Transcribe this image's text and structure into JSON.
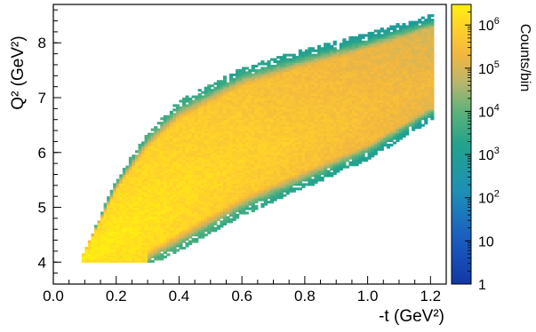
{
  "chart_data": {
    "type": "heatmap",
    "title": "",
    "xlabel": "-t (GeV²)",
    "ylabel": "Q² (GeV²)",
    "xlim": [
      0.0,
      1.25
    ],
    "ylim": [
      3.6,
      8.7
    ],
    "xticks": [
      0.0,
      0.2,
      0.4,
      0.6,
      0.8,
      1.0,
      1.2
    ],
    "xtick_labels": [
      "0.0",
      "0.2",
      "0.4",
      "0.6",
      "0.8",
      "1.0",
      "1.2"
    ],
    "yticks": [
      4,
      5,
      6,
      7,
      8
    ],
    "ytick_labels": [
      "4",
      "5",
      "6",
      "7",
      "8"
    ],
    "colorbar": {
      "label": "Counts/bin",
      "scale": "log",
      "range": [
        1,
        3000000
      ],
      "ticks": [
        1,
        10,
        100,
        1000,
        10000,
        100000,
        1000000
      ],
      "tick_labels": [
        {
          "base": "1",
          "exp": ""
        },
        {
          "base": "10",
          "exp": ""
        },
        {
          "base": "10",
          "exp": "2"
        },
        {
          "base": "10",
          "exp": "3"
        },
        {
          "base": "10",
          "exp": "4"
        },
        {
          "base": "10",
          "exp": "5"
        },
        {
          "base": "10",
          "exp": "6"
        }
      ]
    },
    "distribution": {
      "x_range": [
        0.09,
        1.21
      ],
      "q2_min": 4.0,
      "upper_edge": [
        [
          0.09,
          4.1
        ],
        [
          0.2,
          5.45
        ],
        [
          0.3,
          6.3
        ],
        [
          0.4,
          6.85
        ],
        [
          0.6,
          7.45
        ],
        [
          0.8,
          7.8
        ],
        [
          1.0,
          8.1
        ],
        [
          1.2,
          8.45
        ]
      ],
      "lower_edge": [
        [
          0.09,
          4.0
        ],
        [
          0.3,
          4.0
        ],
        [
          0.4,
          4.3
        ],
        [
          0.6,
          4.95
        ],
        [
          0.8,
          5.45
        ],
        [
          1.0,
          5.95
        ],
        [
          1.2,
          6.65
        ]
      ],
      "peak_counts": 3000000,
      "min_counts": 100
    },
    "grid": false,
    "legend": "none"
  }
}
